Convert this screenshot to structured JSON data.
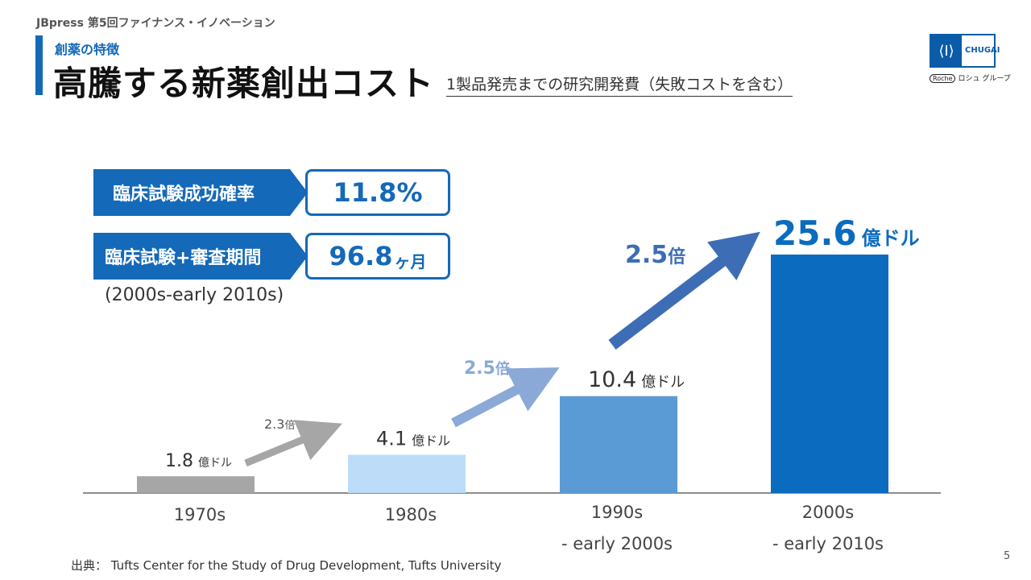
{
  "header": {
    "text": "JBpress 第5回ファイナンス・イノベーション",
    "section_label": "創薬の特徴",
    "title": "高騰する新薬創出コスト",
    "subtitle": "1製品発売までの研究開発費（失敗コストを含む）"
  },
  "logo": {
    "mark": "⟨I⟩",
    "brand": "CHUGAI",
    "roche_badge": "Roche",
    "group_text": "ロシュ グループ"
  },
  "stats": [
    {
      "label": "臨床試験成功確率",
      "value": "11.8%",
      "unit": ""
    },
    {
      "label": "臨床試験+審査期間",
      "value": "96.8",
      "unit": "ヶ月"
    }
  ],
  "stats_note": "(2000s-early 2010s)",
  "chart_data": {
    "type": "bar",
    "title": "1製品発売までの研究開発費（失敗コストを含む）",
    "unit": "億ドル",
    "categories": [
      {
        "line1": "1970s",
        "line2": ""
      },
      {
        "line1": "1980s",
        "line2": ""
      },
      {
        "line1": "1990s",
        "line2": "- early 2000s"
      },
      {
        "line1": "2000s",
        "line2": "- early 2010s"
      }
    ],
    "values": [
      1.8,
      4.1,
      10.4,
      25.6
    ],
    "value_labels": [
      "1.8",
      "4.1",
      "10.4",
      "25.6"
    ],
    "colors": [
      "#a6a6a6",
      "#bcdcf7",
      "#5b9bd5",
      "#0b6bbf"
    ],
    "ylim": [
      0,
      26
    ],
    "growth": [
      {
        "value": "2.3",
        "unit": "倍",
        "color": "#a6a6a6"
      },
      {
        "value": "2.5",
        "unit": "倍",
        "color": "#8aa9d6"
      },
      {
        "value": "2.5",
        "unit": "倍",
        "color": "#3d6db5"
      }
    ]
  },
  "source": "出典： Tufts Center for the Study of Drug Development, Tufts University",
  "page_number": "5"
}
